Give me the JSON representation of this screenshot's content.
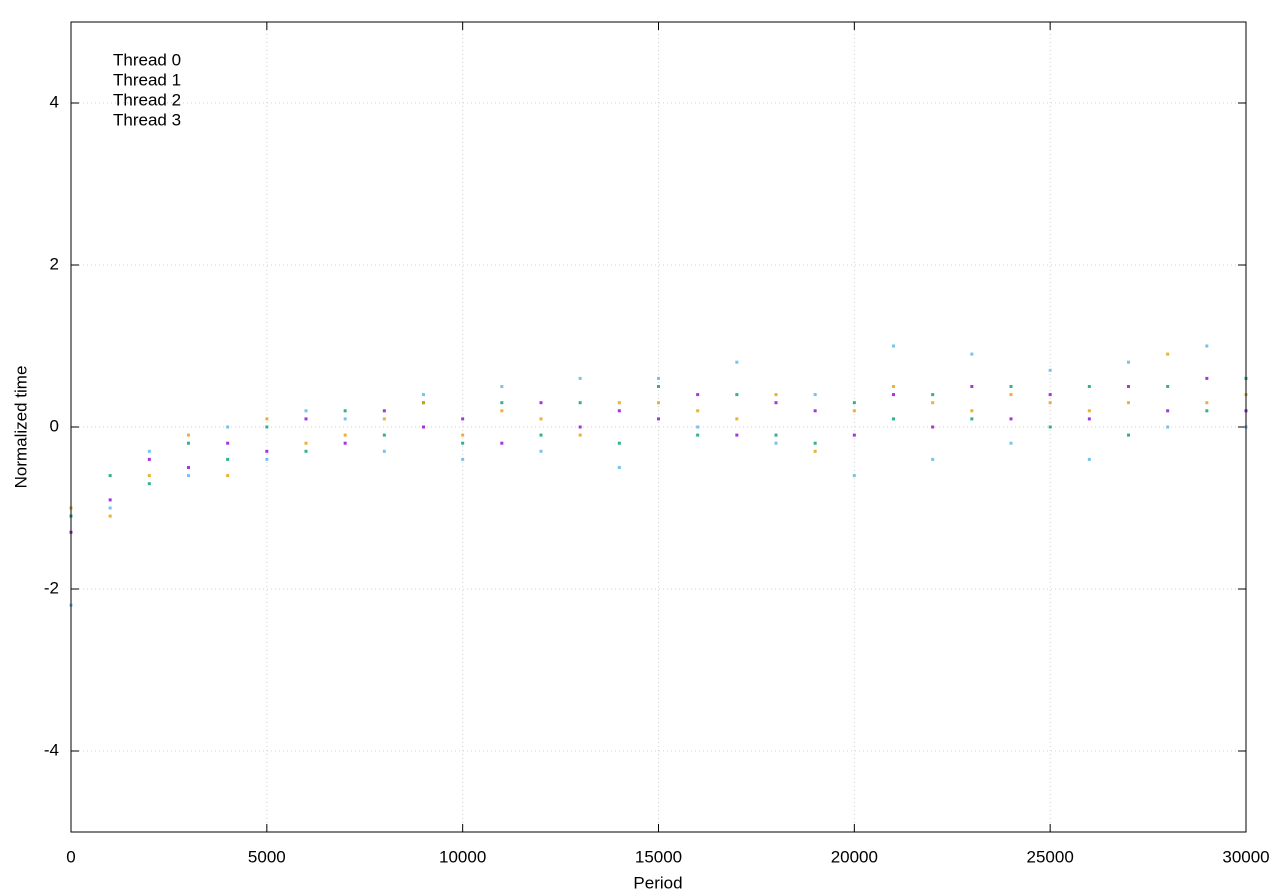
{
  "chart_data": {
    "type": "scatter",
    "xlabel": "Period",
    "ylabel": "Normalized time",
    "xlim": [
      0,
      30000
    ],
    "xticks": [
      0,
      5000,
      10000,
      15000,
      20000,
      25000,
      30000
    ],
    "ylim": [
      -5,
      5
    ],
    "yticks": [
      -4,
      -2,
      0,
      2,
      4
    ],
    "grid": true,
    "legend": "top-left",
    "x": [
      0,
      1000,
      2000,
      3000,
      4000,
      5000,
      6000,
      7000,
      8000,
      9000,
      10000,
      11000,
      12000,
      13000,
      14000,
      15000,
      16000,
      17000,
      18000,
      19000,
      20000,
      21000,
      22000,
      23000,
      24000,
      25000,
      26000,
      27000,
      28000,
      29000,
      30000
    ],
    "series": [
      {
        "name": "Thread 0",
        "color": "#9400d3",
        "values": [
          -1.3,
          -0.9,
          -0.4,
          -0.5,
          -0.2,
          -0.3,
          0.1,
          -0.2,
          0.2,
          0.0,
          0.1,
          -0.2,
          0.3,
          0.0,
          0.2,
          0.1,
          0.4,
          -0.1,
          0.3,
          0.2,
          -0.1,
          0.4,
          0.0,
          0.5,
          0.1,
          0.4,
          0.1,
          0.5,
          0.2,
          0.6,
          0.2
        ]
      },
      {
        "name": "Thread 1",
        "color": "#009e73",
        "values": [
          -1.1,
          -0.6,
          -0.7,
          -0.2,
          -0.4,
          0.0,
          -0.3,
          0.2,
          -0.1,
          0.3,
          -0.2,
          0.3,
          -0.1,
          0.3,
          -0.2,
          0.5,
          -0.1,
          0.4,
          -0.1,
          -0.2,
          0.3,
          0.1,
          0.4,
          0.1,
          0.5,
          0.0,
          0.5,
          -0.1,
          0.5,
          0.2,
          0.6
        ]
      },
      {
        "name": "Thread 2",
        "color": "#56b4e9",
        "values": [
          -2.2,
          -1.0,
          -0.3,
          -0.6,
          0.0,
          -0.4,
          0.2,
          0.1,
          -0.3,
          0.4,
          -0.4,
          0.5,
          -0.3,
          0.6,
          -0.5,
          0.6,
          0.0,
          0.8,
          -0.2,
          0.4,
          -0.6,
          1.0,
          -0.4,
          0.9,
          -0.2,
          0.7,
          -0.4,
          0.8,
          0.0,
          1.0,
          0.0
        ]
      },
      {
        "name": "Thread 3",
        "color": "#e69f00",
        "values": [
          -1.0,
          -1.1,
          -0.6,
          -0.1,
          -0.6,
          0.1,
          -0.2,
          -0.1,
          0.1,
          0.3,
          -0.1,
          0.2,
          0.1,
          -0.1,
          0.3,
          0.3,
          0.2,
          0.1,
          0.4,
          -0.3,
          0.2,
          0.5,
          0.3,
          0.2,
          0.4,
          0.3,
          0.2,
          0.3,
          0.9,
          0.3,
          0.4
        ]
      }
    ]
  }
}
